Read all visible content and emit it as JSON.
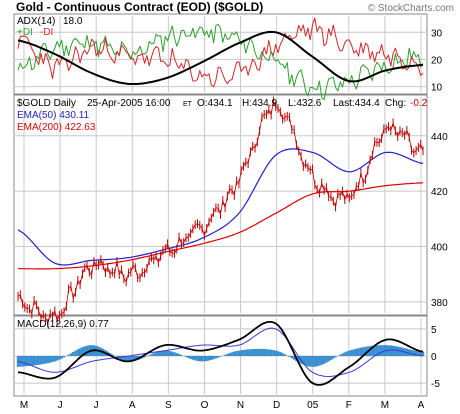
{
  "header": {
    "title": "Gold - Continuous Contract (EOD) ($GOLD)",
    "watermark": "© StockCharts.com"
  },
  "adx_panel": {
    "label": "ADX(14)",
    "label_value": "18.0",
    "dmi_plus_label": "+DI",
    "dmi_minus_label": "-DI",
    "y_ticks": [
      "30",
      "20",
      "10"
    ]
  },
  "price_panel": {
    "info_symbol": "$GOLD Daily",
    "info_date": "25-Apr-2005 16:00",
    "info_tz": "ET",
    "info_open": "O:434.1",
    "info_high": "H:434.9",
    "info_low": "L:432.6",
    "info_last": "Last:434.4",
    "info_chg_label": "Chg:",
    "info_chg_value": "-0.2",
    "ema50_label": "EMA(50) 430.11",
    "ema200_label": "EMA(200) 422.63",
    "y_ticks": [
      "440",
      "420",
      "400",
      "380"
    ]
  },
  "macd_panel": {
    "label": "MACD(12,26,9) 0.77",
    "y_ticks": [
      "5",
      "0",
      "-5"
    ]
  },
  "x_ticks": [
    "M",
    "J",
    "J",
    "A",
    "S",
    "O",
    "N",
    "D",
    "05",
    "F",
    "M",
    "A"
  ],
  "colors": {
    "adx": "#000000",
    "plus_di": "#2ca02c",
    "minus_di": "#d62728",
    "price": "#c00000",
    "ema50": "#2222cc",
    "ema200": "#dd0000",
    "macd": "#000000",
    "signal": "#3a3ad0",
    "hist": "#3a8fd0",
    "grid": "#c8c8c8",
    "border": "#888888"
  },
  "chart_data": [
    {
      "type": "line",
      "name": "adx_panel",
      "ylim": [
        8,
        36
      ],
      "x": [
        "M",
        "J",
        "J",
        "A",
        "S",
        "O",
        "N",
        "D",
        "05",
        "F",
        "M",
        "A"
      ],
      "series": [
        {
          "name": "ADX(14)",
          "values": [
            27,
            22,
            15,
            11,
            13,
            19,
            26,
            30,
            21,
            12,
            16,
            18
          ]
        },
        {
          "name": "+DI",
          "values": [
            17,
            24,
            26,
            22,
            28,
            30,
            27,
            19,
            10,
            12,
            18,
            21
          ]
        },
        {
          "name": "-DI",
          "values": [
            28,
            17,
            24,
            21,
            20,
            14,
            15,
            25,
            31,
            25,
            22,
            19
          ]
        }
      ]
    },
    {
      "type": "line",
      "name": "price_panel",
      "ylim": [
        376,
        454
      ],
      "x": [
        "M",
        "J",
        "J",
        "A",
        "S",
        "O",
        "N",
        "D",
        "05",
        "F",
        "M",
        "A"
      ],
      "series": [
        {
          "name": "$GOLD",
          "values": [
            381,
            375,
            393,
            390,
            398,
            407,
            424,
            451,
            426,
            418,
            442,
            433
          ]
        },
        {
          "name": "EMA(50)",
          "values": [
            406,
            394,
            395,
            396,
            399,
            403,
            412,
            433,
            434,
            427,
            434,
            430
          ]
        },
        {
          "name": "EMA(200)",
          "values": [
            392,
            392,
            393,
            395,
            398,
            401,
            405,
            412,
            419,
            420,
            422,
            423
          ]
        }
      ]
    },
    {
      "type": "line",
      "name": "macd_panel",
      "ylim": [
        -7,
        7
      ],
      "x": [
        "M",
        "J",
        "J",
        "A",
        "S",
        "O",
        "N",
        "D",
        "05",
        "F",
        "M",
        "A"
      ],
      "series": [
        {
          "name": "MACD",
          "values": [
            -3,
            -4,
            1,
            -1,
            2,
            1,
            3,
            6,
            -5,
            -2,
            3,
            0.77
          ]
        },
        {
          "name": "Signal",
          "values": [
            -1,
            -3,
            -1,
            0,
            1,
            2,
            2,
            5,
            -3,
            -3,
            1,
            0
          ]
        }
      ]
    }
  ]
}
